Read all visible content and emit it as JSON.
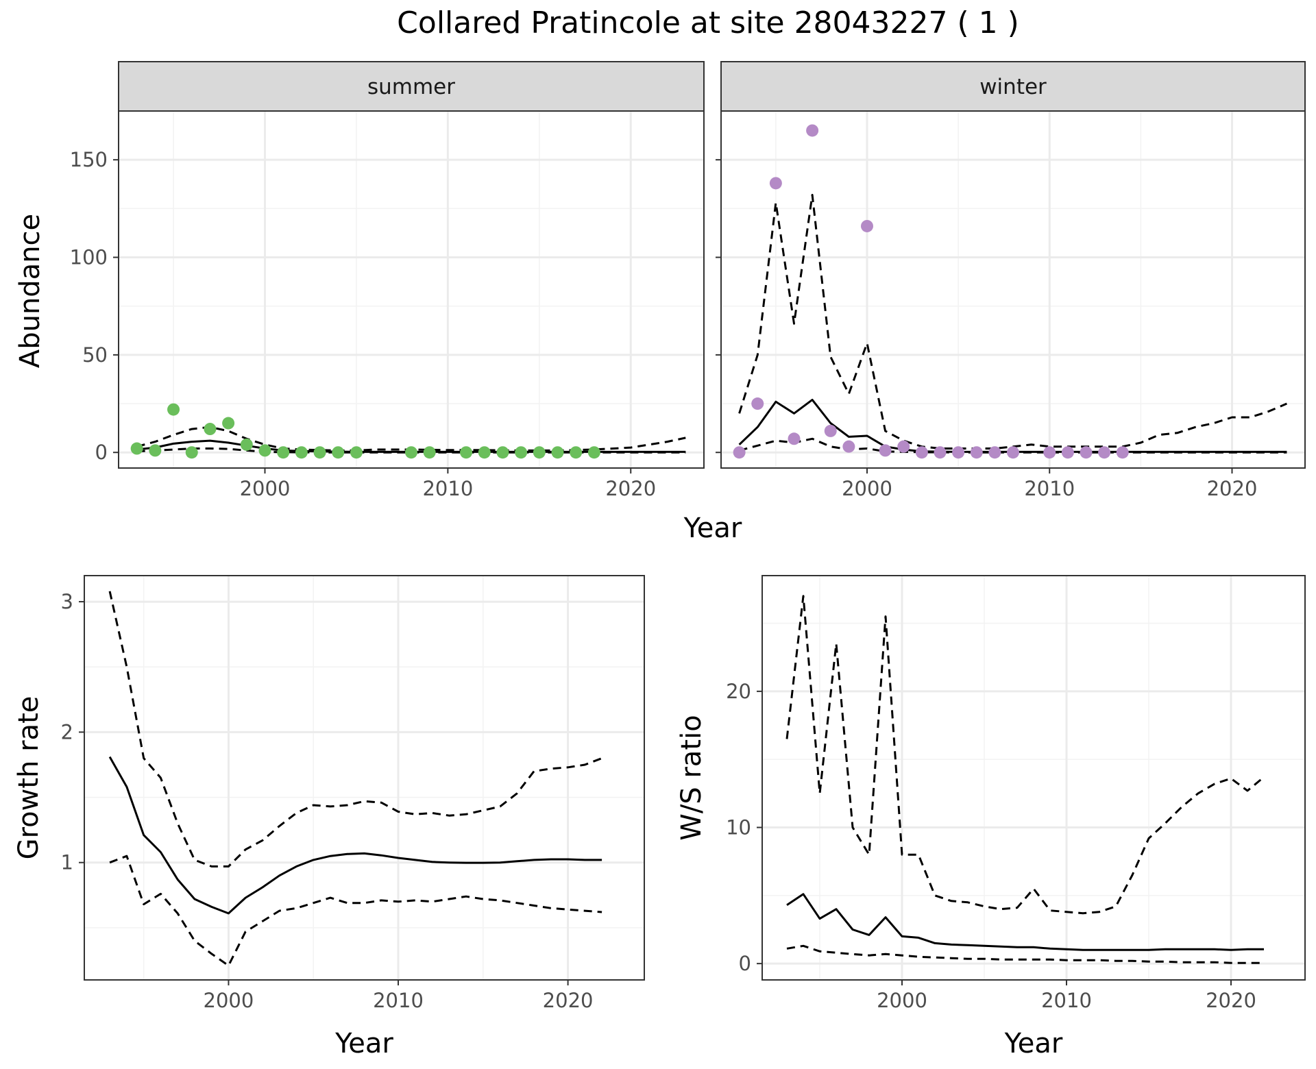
{
  "figure": {
    "title": "Collared Pratincole at site 28043227 ( 1 )"
  },
  "colors": {
    "summer_points": "#6ABE5B",
    "winter_points": "#B48AC6",
    "line": "#000000",
    "strip_fill": "#D9D9D9",
    "grid_major": "#EBEBEB",
    "grid_minor": "#F3F3F3",
    "panel_border": "#333333",
    "tick_text": "#4D4D4D"
  },
  "chart_data": [
    {
      "type": "line",
      "panel": "summer",
      "strip_label": "summer",
      "xlabel": "Year",
      "ylabel": "Abundance",
      "xlim": [
        1992,
        2024
      ],
      "ylim": [
        -8,
        175
      ],
      "x_ticks": [
        2000,
        2010,
        2020
      ],
      "x_tick_labels": [
        "2000",
        "2010",
        "2020"
      ],
      "y_ticks": [
        0,
        50,
        100,
        150
      ],
      "y_tick_labels": [
        "0",
        "50",
        "100",
        "150"
      ],
      "grid": true,
      "points": {
        "x": [
          1993,
          1994,
          1995,
          1996,
          1997,
          1998,
          1999,
          2000,
          2001,
          2002,
          2003,
          2004,
          2005,
          2008,
          2009,
          2011,
          2012,
          2013,
          2014,
          2015,
          2016,
          2017,
          2018
        ],
        "y": [
          2,
          1,
          22,
          0,
          12,
          15,
          4,
          1,
          0,
          0,
          0,
          0,
          0,
          0,
          0,
          0,
          0,
          0,
          0,
          0,
          0,
          0,
          0
        ]
      },
      "series": [
        {
          "style": "solid",
          "x": [
            1993,
            1994,
            1995,
            1996,
            1997,
            1998,
            1999,
            2000,
            2001,
            2002,
            2003,
            2004,
            2005,
            2006,
            2008,
            2010,
            2012,
            2014,
            2016,
            2018,
            2020,
            2022,
            2023
          ],
          "y": [
            1.5,
            2.5,
            4.5,
            5.5,
            6,
            5,
            3.5,
            2,
            1,
            0.7,
            0.5,
            0.4,
            0.3,
            0.3,
            0.3,
            0.3,
            0.3,
            0.3,
            0.3,
            0.3,
            0.3,
            0.3,
            0.3
          ]
        },
        {
          "style": "dashed",
          "x": [
            1993,
            1994,
            1995,
            1996,
            1997,
            1998,
            1999,
            2000,
            2001,
            2002,
            2003,
            2004,
            2005,
            2006,
            2008,
            2010,
            2012,
            2014,
            2016,
            2018,
            2020,
            2022,
            2023
          ],
          "y": [
            3,
            5.5,
            9,
            12,
            13,
            11,
            7,
            4,
            2,
            1.5,
            1.2,
            1,
            1,
            1.5,
            1.5,
            1.2,
            1.2,
            1,
            1,
            1.5,
            2.5,
            5.5,
            7.5
          ]
        },
        {
          "style": "dashed",
          "x": [
            1993,
            1994,
            1995,
            1996,
            1997,
            1998,
            1999,
            2000,
            2001,
            2003,
            2005,
            2010,
            2015,
            2020,
            2023
          ],
          "y": [
            0.5,
            1,
            1.5,
            2,
            2,
            1.8,
            1,
            0.3,
            0.1,
            0,
            0,
            0,
            0,
            0,
            0
          ]
        }
      ]
    },
    {
      "type": "line",
      "panel": "winter",
      "strip_label": "winter",
      "xlabel": "Year",
      "ylabel": "Abundance",
      "xlim": [
        1992,
        2024
      ],
      "ylim": [
        -8,
        175
      ],
      "x_ticks": [
        2000,
        2010,
        2020
      ],
      "x_tick_labels": [
        "2000",
        "2010",
        "2020"
      ],
      "y_ticks": [
        0,
        50,
        100,
        150
      ],
      "grid": true,
      "points": {
        "x": [
          1993,
          1994,
          1995,
          1996,
          1997,
          1998,
          1999,
          2000,
          2001,
          2002,
          2003,
          2004,
          2005,
          2006,
          2007,
          2008,
          2010,
          2011,
          2012,
          2013,
          2014
        ],
        "y": [
          0,
          25,
          138,
          7,
          165,
          11,
          3,
          116,
          1,
          3,
          0,
          0,
          0,
          0,
          0,
          0,
          0,
          0,
          0,
          0,
          0
        ]
      },
      "series": [
        {
          "style": "solid",
          "x": [
            1993,
            1994,
            1995,
            1996,
            1997,
            1998,
            1999,
            2000,
            2001,
            2002,
            2003,
            2005,
            2010,
            2015,
            2020,
            2023
          ],
          "y": [
            4,
            13,
            26,
            20,
            27,
            15,
            8,
            8.5,
            3,
            1.5,
            0.5,
            0.3,
            0.3,
            0.3,
            0.3,
            0.3
          ]
        },
        {
          "style": "dashed",
          "x": [
            1993,
            1994,
            1995,
            1996,
            1997,
            1998,
            1999,
            2000,
            2001,
            2002,
            2003,
            2004,
            2005,
            2006,
            2007,
            2008,
            2009,
            2010,
            2011,
            2012,
            2013,
            2014,
            2015,
            2016,
            2017,
            2018,
            2019,
            2020,
            2021,
            2022,
            2023
          ],
          "y": [
            20,
            50,
            128,
            66,
            132,
            49,
            30,
            56,
            11,
            6,
            3,
            2,
            2,
            2,
            2,
            3,
            4,
            3,
            3,
            3,
            3,
            3,
            5,
            9,
            10,
            13,
            15,
            18,
            18,
            21,
            25
          ]
        },
        {
          "style": "dashed",
          "x": [
            1993,
            1994,
            1995,
            1996,
            1997,
            1998,
            1999,
            2000,
            2001,
            2002,
            2003,
            2005,
            2010,
            2015,
            2020,
            2023
          ],
          "y": [
            1,
            3.5,
            6,
            5,
            7,
            3,
            1.5,
            2,
            0.5,
            0.3,
            0.1,
            0,
            0,
            0,
            0,
            0
          ]
        }
      ]
    },
    {
      "type": "line",
      "panel": "growth",
      "xlabel": "Year",
      "ylabel": "Growth rate",
      "xlim": [
        1991.5,
        2024.5
      ],
      "ylim": [
        0.1,
        3.2
      ],
      "x_ticks": [
        2000,
        2010,
        2020
      ],
      "x_tick_labels": [
        "2000",
        "2010",
        "2020"
      ],
      "y_ticks": [
        1,
        2,
        3
      ],
      "y_tick_labels": [
        "1",
        "2",
        "3"
      ],
      "grid": true,
      "series": [
        {
          "style": "solid",
          "x": [
            1993,
            1994,
            1995,
            1996,
            1997,
            1998,
            1999,
            2000,
            2001,
            2002,
            2003,
            2004,
            2005,
            2006,
            2007,
            2008,
            2009,
            2010,
            2011,
            2012,
            2013,
            2014,
            2015,
            2016,
            2017,
            2018,
            2019,
            2020,
            2021,
            2022
          ],
          "y": [
            1.81,
            1.58,
            1.21,
            1.08,
            0.87,
            0.72,
            0.66,
            0.61,
            0.73,
            0.81,
            0.9,
            0.97,
            1.02,
            1.05,
            1.065,
            1.07,
            1.055,
            1.035,
            1.02,
            1.005,
            1.0,
            0.998,
            0.998,
            1.0,
            1.01,
            1.02,
            1.025,
            1.025,
            1.02,
            1.02
          ]
        },
        {
          "style": "dashed",
          "x": [
            1993,
            1994,
            1995,
            1996,
            1997,
            1998,
            1999,
            2000,
            2001,
            2002,
            2003,
            2004,
            2005,
            2006,
            2007,
            2008,
            2009,
            2010,
            2011,
            2012,
            2013,
            2014,
            2015,
            2016,
            2017,
            2018,
            2019,
            2020,
            2021,
            2022
          ],
          "y": [
            3.08,
            2.5,
            1.8,
            1.65,
            1.3,
            1.02,
            0.97,
            0.97,
            1.1,
            1.17,
            1.28,
            1.38,
            1.44,
            1.43,
            1.44,
            1.47,
            1.46,
            1.39,
            1.37,
            1.38,
            1.36,
            1.37,
            1.4,
            1.43,
            1.53,
            1.7,
            1.72,
            1.73,
            1.75,
            1.8
          ]
        },
        {
          "style": "dashed",
          "x": [
            1993,
            1994,
            1995,
            1996,
            1997,
            1998,
            1999,
            2000,
            2001,
            2002,
            2003,
            2004,
            2005,
            2006,
            2007,
            2008,
            2009,
            2010,
            2011,
            2012,
            2013,
            2014,
            2015,
            2016,
            2017,
            2018,
            2019,
            2020,
            2021,
            2022
          ],
          "y": [
            1.0,
            1.05,
            0.68,
            0.76,
            0.61,
            0.4,
            0.3,
            0.21,
            0.47,
            0.55,
            0.63,
            0.65,
            0.69,
            0.73,
            0.69,
            0.69,
            0.71,
            0.7,
            0.71,
            0.7,
            0.72,
            0.74,
            0.72,
            0.71,
            0.69,
            0.67,
            0.65,
            0.64,
            0.63,
            0.62
          ]
        }
      ]
    },
    {
      "type": "line",
      "panel": "ratio",
      "xlabel": "Year",
      "ylabel": "W/S ratio",
      "xlim": [
        1991.5,
        2024.5
      ],
      "ylim": [
        -1.2,
        28.5
      ],
      "x_ticks": [
        2000,
        2010,
        2020
      ],
      "x_tick_labels": [
        "2000",
        "2010",
        "2020"
      ],
      "y_ticks": [
        0,
        10,
        20
      ],
      "y_tick_labels": [
        "0",
        "10",
        "20"
      ],
      "grid": true,
      "series": [
        {
          "style": "solid",
          "x": [
            1993,
            1994,
            1995,
            1996,
            1997,
            1998,
            1999,
            2000,
            2001,
            2002,
            2003,
            2004,
            2005,
            2006,
            2007,
            2008,
            2009,
            2010,
            2011,
            2012,
            2013,
            2014,
            2015,
            2016,
            2017,
            2018,
            2019,
            2020,
            2021,
            2022
          ],
          "y": [
            4.3,
            5.1,
            3.3,
            4.0,
            2.5,
            2.1,
            3.4,
            2.0,
            1.9,
            1.5,
            1.4,
            1.35,
            1.3,
            1.25,
            1.2,
            1.2,
            1.1,
            1.05,
            1.0,
            1.0,
            1.0,
            1.0,
            1.0,
            1.05,
            1.05,
            1.05,
            1.05,
            1.0,
            1.05,
            1.05
          ]
        },
        {
          "style": "dashed",
          "x": [
            1993,
            1994,
            1995,
            1996,
            1997,
            1998,
            1999,
            2000,
            2001,
            2002,
            2003,
            2004,
            2005,
            2006,
            2007,
            2008,
            2009,
            2010,
            2011,
            2012,
            2013,
            2014,
            2015,
            2016,
            2017,
            2018,
            2019,
            2020,
            2021,
            2022
          ],
          "y": [
            16.5,
            27.0,
            12.5,
            23.5,
            10.0,
            8.0,
            25.5,
            8.0,
            8.0,
            5.0,
            4.6,
            4.5,
            4.2,
            4.0,
            4.1,
            5.5,
            3.9,
            3.8,
            3.7,
            3.8,
            4.2,
            6.5,
            9.2,
            10.3,
            11.5,
            12.5,
            13.2,
            13.6,
            12.7,
            13.7
          ]
        },
        {
          "style": "dashed",
          "x": [
            1993,
            1994,
            1995,
            1996,
            1997,
            1998,
            1999,
            2000,
            2001,
            2002,
            2003,
            2004,
            2005,
            2006,
            2007,
            2008,
            2009,
            2010,
            2011,
            2012,
            2013,
            2014,
            2015,
            2016,
            2017,
            2018,
            2019,
            2020,
            2021,
            2022
          ],
          "y": [
            1.1,
            1.3,
            0.9,
            0.8,
            0.7,
            0.6,
            0.7,
            0.6,
            0.5,
            0.45,
            0.4,
            0.35,
            0.35,
            0.3,
            0.3,
            0.3,
            0.3,
            0.25,
            0.25,
            0.25,
            0.2,
            0.2,
            0.15,
            0.15,
            0.1,
            0.1,
            0.1,
            0.05,
            0.05,
            0.05
          ]
        }
      ]
    }
  ]
}
